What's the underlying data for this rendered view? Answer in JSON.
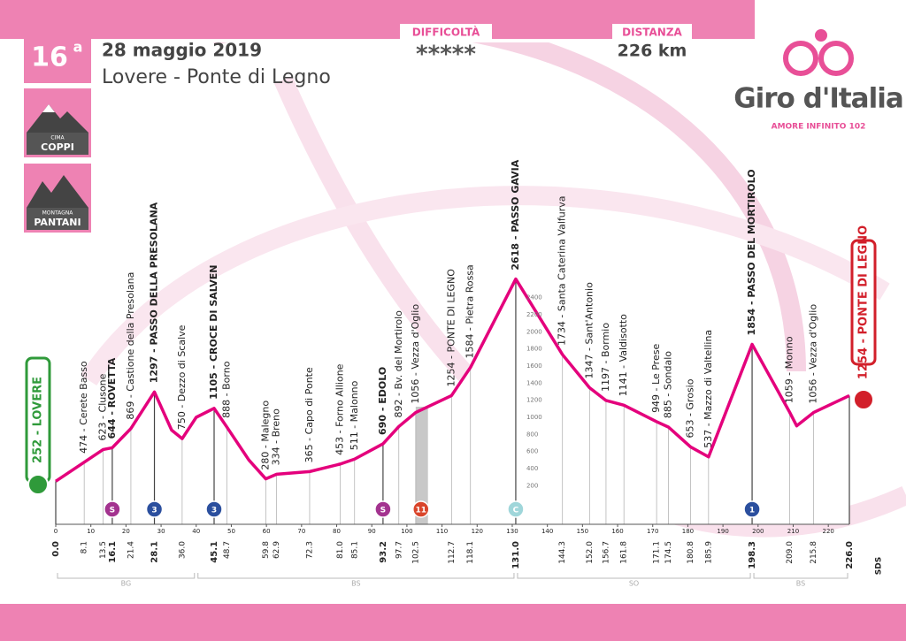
{
  "header": {
    "stage": "16",
    "stage_suffix": "a",
    "date": "28 maggio 2019",
    "route": "Lovere - Ponte di Legno",
    "difficulty_label": "DIFFICOLTÀ",
    "difficulty": "*****",
    "distance_label": "DISTANZA",
    "distance": "226 km",
    "brand": "Giro d'Italia",
    "tagline": "AMORE INFINITO 102",
    "badges": [
      {
        "small": "CIMA",
        "big": "COPPI"
      },
      {
        "small": "MONTAGNA",
        "big": "PANTANI"
      }
    ],
    "credit": "SDS"
  },
  "chart_data": {
    "type": "area",
    "color": "#e4007c",
    "x": [
      0,
      8.1,
      13.5,
      16.1,
      21.4,
      28.1,
      33,
      36,
      40,
      45.1,
      48.7,
      55,
      59.8,
      62.9,
      72.3,
      81,
      85.1,
      93.2,
      97.7,
      102.5,
      112.7,
      118.1,
      131,
      144.3,
      152,
      156.7,
      161.8,
      171.1,
      174.5,
      180.8,
      185.9,
      198.3,
      209,
      211,
      215.8,
      226
    ],
    "values": [
      252,
      474,
      623,
      644,
      869,
      1297,
      850,
      750,
      1000,
      1105,
      888,
      500,
      280,
      334,
      365,
      453,
      511,
      690,
      892,
      1056,
      1254,
      1584,
      2618,
      1734,
      1347,
      1197,
      1141,
      949,
      885,
      653,
      537,
      1854,
      1059,
      900,
      1056,
      1254
    ],
    "xlim": [
      0,
      226
    ],
    "xticks": [
      0,
      10,
      20,
      30,
      40,
      50,
      60,
      70,
      80,
      90,
      100,
      110,
      120,
      130,
      140,
      150,
      160,
      170,
      180,
      190,
      200,
      210,
      220
    ],
    "ylim": [
      -200,
      2800
    ],
    "yticks": [
      200,
      400,
      600,
      800,
      1000,
      1200,
      1400,
      1600,
      1800,
      2000,
      2200,
      2400
    ],
    "grid": false,
    "waypoints": [
      {
        "km": {
          "value": 0,
          "label": "0.0"
        },
        "label": "252 - LOVERE",
        "bold": true
      },
      {
        "km": 8.1,
        "label": "474 - Cerete Basso",
        "bold": false
      },
      {
        "km": 13.5,
        "label": "623 - Clusone",
        "bold": false
      },
      {
        "km": 16.1,
        "label": "644 - ROVETTA",
        "bold": true
      },
      {
        "km": 21.4,
        "label": "869 - Castione della Presolana",
        "bold": false
      },
      {
        "km": 28.1,
        "label": "1297 - PASSO DELLA PRESOLANA",
        "bold": true
      },
      {
        "km": {
          "value": 36,
          "label": "36.0"
        },
        "label": "750 - Dezzo di Scalve",
        "bold": false
      },
      {
        "km": 45.1,
        "label": "1105 - CROCE DI SALVEN",
        "bold": true
      },
      {
        "km": 48.7,
        "label": "888 - Borno",
        "bold": false
      },
      {
        "km": 59.8,
        "label": "280 - Malegno",
        "bold": false
      },
      {
        "km": 62.9,
        "label": "334 - Breno",
        "bold": false
      },
      {
        "km": 72.3,
        "label": "365 - Capo di Ponte",
        "bold": false
      },
      {
        "km": {
          "value": 81,
          "label": "81.0"
        },
        "label": "453 - Forno Allione",
        "bold": false
      },
      {
        "km": 85.1,
        "label": "511 - Malonno",
        "bold": false
      },
      {
        "km": 93.2,
        "label": "690 - EDOLO",
        "bold": true
      },
      {
        "km": 97.7,
        "label": "892 - Bv. del Mortirolo",
        "bold": false
      },
      {
        "km": 102.5,
        "label": "1056 - Vezza d'Oglio",
        "bold": false
      },
      {
        "km": 112.7,
        "label": "1254 - PONTE DI LEGNO",
        "bold": false
      },
      {
        "km": 118.1,
        "label": "1584 - Pietra Rossa",
        "bold": false
      },
      {
        "km": {
          "value": 131,
          "label": "131.0"
        },
        "label": "2618 - PASSO GAVIA",
        "bold": true
      },
      {
        "km": 144.3,
        "label": "1734 - Santa Caterina Valfurva",
        "bold": false
      },
      {
        "km": {
          "value": 152,
          "label": "152.0"
        },
        "label": "1347 - Sant'Antonio",
        "bold": false
      },
      {
        "km": 156.7,
        "label": "1197 - Bormio",
        "bold": false
      },
      {
        "km": 161.8,
        "label": "1141 - Valdisotto",
        "bold": false
      },
      {
        "km": 171.1,
        "label": "949 - Le Prese",
        "bold": false
      },
      {
        "km": 174.5,
        "label": "885 - Sondalo",
        "bold": false
      },
      {
        "km": 180.8,
        "label": "653 - Grosio",
        "bold": false
      },
      {
        "km": 185.9,
        "label": "537 - Mazzo di Valtellina",
        "bold": false
      },
      {
        "km": 198.3,
        "label": "1854 - PASSO DEL MORTIROLO",
        "bold": true
      },
      {
        "km": {
          "value": 209,
          "label": "209.0"
        },
        "label": "1059 - Monno",
        "bold": false
      },
      {
        "km": 215.8,
        "label": "1056 - Vezza d'Oglio",
        "bold": false
      },
      {
        "km": {
          "value": 226,
          "label": "226.0"
        },
        "label": "1254 - PONTE DI LEGNO",
        "bold": true
      }
    ],
    "markers": [
      {
        "km": 16.1,
        "label": "S",
        "color": "#a3338f"
      },
      {
        "km": 28.1,
        "label": "3",
        "color": "#2b4f9e"
      },
      {
        "km": 45.1,
        "label": "3",
        "color": "#2b4f9e"
      },
      {
        "km": 93.2,
        "label": "S",
        "color": "#a3338f"
      },
      {
        "km": 104,
        "label": "11",
        "color": "#d9452b"
      },
      {
        "km": 131,
        "label": "C",
        "color": "#9fd6da"
      },
      {
        "km": 198.3,
        "label": "1",
        "color": "#2b4f9e"
      }
    ],
    "feed_zone": [
      102.5,
      106
    ],
    "regions": [
      {
        "label": "BG",
        "from": 0,
        "to": 40
      },
      {
        "label": "BS",
        "from": 40,
        "to": 131
      },
      {
        "label": "SO",
        "from": 131,
        "to": 198.3
      },
      {
        "label": "BS",
        "from": 198.3,
        "to": 226
      }
    ]
  }
}
